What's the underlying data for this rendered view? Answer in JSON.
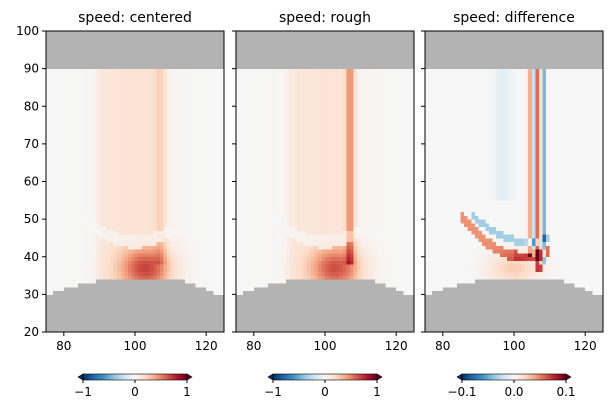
{
  "chart_data": [
    {
      "type": "heatmap",
      "title": "speed: centered",
      "xlim": [
        75,
        125
      ],
      "ylim": [
        20,
        100
      ],
      "xticks": [
        80,
        100,
        120
      ],
      "yticks": [
        20,
        30,
        40,
        50,
        60,
        70,
        80,
        90,
        100
      ],
      "show_yticklabels": true,
      "masked_color": "#b3b3b3",
      "colorbar": {
        "ticks": [
          -1,
          0,
          1
        ],
        "tick_labels": [
          "−1",
          "0",
          "1"
        ],
        "range": [
          -1,
          1
        ]
      }
    },
    {
      "type": "heatmap",
      "title": "speed: rough",
      "xlim": [
        75,
        125
      ],
      "ylim": [
        20,
        100
      ],
      "xticks": [
        80,
        100,
        120
      ],
      "yticks": [
        20,
        30,
        40,
        50,
        60,
        70,
        80,
        90,
        100
      ],
      "show_yticklabels": false,
      "masked_color": "#b3b3b3",
      "colorbar": {
        "ticks": [
          -1,
          0,
          1
        ],
        "tick_labels": [
          "−1",
          "0",
          "1"
        ],
        "range": [
          -1,
          1
        ]
      }
    },
    {
      "type": "heatmap",
      "title": "speed: difference",
      "xlim": [
        75,
        125
      ],
      "ylim": [
        20,
        100
      ],
      "xticks": [
        80,
        100,
        120
      ],
      "yticks": [
        20,
        30,
        40,
        50,
        60,
        70,
        80,
        90,
        100
      ],
      "show_yticklabels": false,
      "masked_color": "#b3b3b3",
      "colorbar": {
        "ticks": [
          -0.1,
          0.0,
          0.1
        ],
        "tick_labels": [
          "−0.1",
          "0.0",
          "0.1"
        ],
        "range": [
          -0.1,
          0.1
        ]
      }
    }
  ],
  "colormap": [
    "#053061",
    "#2166ac",
    "#4393c3",
    "#92c5de",
    "#d1e5f0",
    "#f7f7f7",
    "#fddbc7",
    "#f4a582",
    "#d6604d",
    "#b2182b",
    "#67001f"
  ],
  "mask": {
    "top_above": 90,
    "bottom_profile": [
      {
        "x": 75,
        "y": 30
      },
      {
        "x": 77,
        "y": 31
      },
      {
        "x": 80,
        "y": 32
      },
      {
        "x": 84,
        "y": 33
      },
      {
        "x": 89,
        "y": 34
      },
      {
        "x": 110,
        "y": 34
      },
      {
        "x": 114,
        "y": 33
      },
      {
        "x": 117,
        "y": 32
      },
      {
        "x": 120,
        "y": 31
      },
      {
        "x": 122,
        "y": 30
      },
      {
        "x": 125,
        "y": 30
      }
    ]
  }
}
